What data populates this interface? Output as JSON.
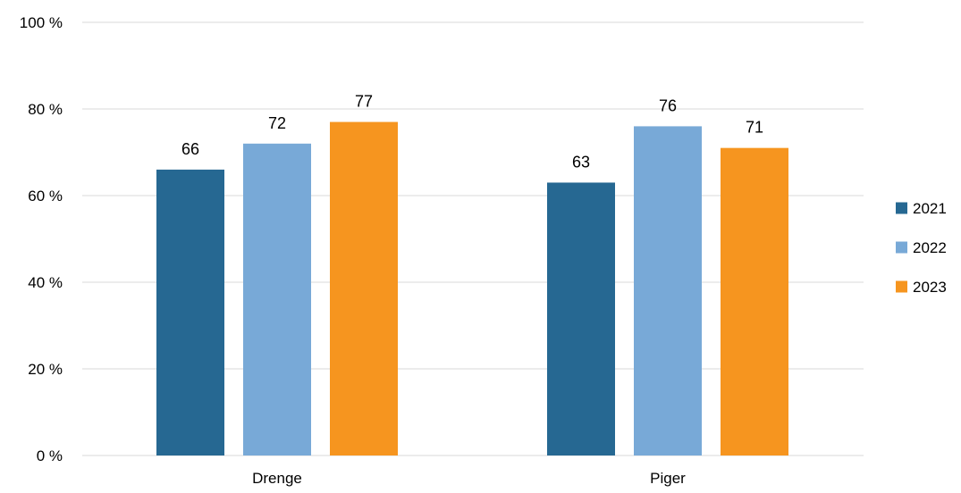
{
  "chart_data": {
    "type": "bar",
    "title": "",
    "xlabel": "",
    "ylabel": "",
    "categories": [
      "Drenge",
      "Piger"
    ],
    "series": [
      {
        "name": "2021",
        "color": "#266892",
        "values": [
          66,
          63
        ]
      },
      {
        "name": "2022",
        "color": "#78a9d7",
        "values": [
          72,
          76
        ]
      },
      {
        "name": "2023",
        "color": "#f6951f",
        "values": [
          77,
          71
        ]
      }
    ],
    "ylim": [
      0,
      100
    ],
    "yticks": [
      0,
      20,
      40,
      60,
      80,
      100
    ],
    "ytick_labels": [
      "0 %",
      "20 %",
      "40 %",
      "60 %",
      "80 %",
      "100 %"
    ],
    "grid": true,
    "legend_position": "right",
    "data_labels": true
  }
}
